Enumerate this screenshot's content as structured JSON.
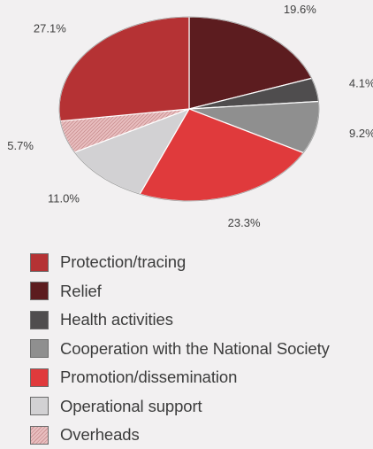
{
  "chart_data": {
    "type": "pie",
    "title": "",
    "start_angle_deg": -90,
    "legend_position": "bottom",
    "slices": [
      {
        "label": "Relief",
        "value": 19.6,
        "value_label": "19.6%",
        "color": "#5c1c1f",
        "pattern": "none"
      },
      {
        "label": "Health activities",
        "value": 4.1,
        "value_label": "4.1%",
        "color": "#4f4d4e",
        "pattern": "none"
      },
      {
        "label": "Cooperation with the National Society",
        "value": 9.2,
        "value_label": "9.2%",
        "color": "#8f8f8f",
        "pattern": "none"
      },
      {
        "label": "Promotion/dissemination",
        "value": 23.3,
        "value_label": "23.3%",
        "color": "#e03a3c",
        "pattern": "none"
      },
      {
        "label": "Operational support",
        "value": 11.0,
        "value_label": "11.0%",
        "color": "#d2d1d3",
        "pattern": "none"
      },
      {
        "label": "Overheads",
        "value": 5.7,
        "value_label": "5.7%",
        "color": "#e9bfc0",
        "pattern": "hatch"
      },
      {
        "label": "Protection/tracing",
        "value": 27.1,
        "value_label": "27.1%",
        "color": "#b53234",
        "pattern": "none"
      }
    ],
    "legend_order": [
      "Protection/tracing",
      "Relief",
      "Health activities",
      "Cooperation with the National Society",
      "Promotion/dissemination",
      "Operational support",
      "Overheads"
    ]
  }
}
